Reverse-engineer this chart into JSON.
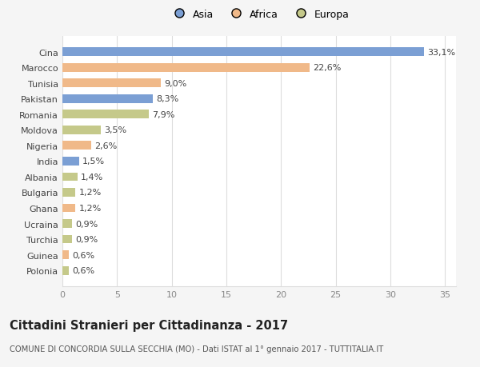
{
  "categories": [
    "Cina",
    "Marocco",
    "Tunisia",
    "Pakistan",
    "Romania",
    "Moldova",
    "Nigeria",
    "India",
    "Albania",
    "Bulgaria",
    "Ghana",
    "Ucraina",
    "Turchia",
    "Guinea",
    "Polonia"
  ],
  "values": [
    33.1,
    22.6,
    9.0,
    8.3,
    7.9,
    3.5,
    2.6,
    1.5,
    1.4,
    1.2,
    1.2,
    0.9,
    0.9,
    0.6,
    0.6
  ],
  "labels": [
    "33,1%",
    "22,6%",
    "9,0%",
    "8,3%",
    "7,9%",
    "3,5%",
    "2,6%",
    "1,5%",
    "1,4%",
    "1,2%",
    "1,2%",
    "0,9%",
    "0,9%",
    "0,6%",
    "0,6%"
  ],
  "colors": [
    "#7b9fd4",
    "#f0b989",
    "#f0b989",
    "#7b9fd4",
    "#c5c98a",
    "#c5c98a",
    "#f0b989",
    "#7b9fd4",
    "#c5c98a",
    "#c5c98a",
    "#f0b989",
    "#c5c98a",
    "#c5c98a",
    "#f0b989",
    "#c5c98a"
  ],
  "legend_labels": [
    "Asia",
    "Africa",
    "Europa"
  ],
  "legend_colors": [
    "#7b9fd4",
    "#f0b989",
    "#c5c98a"
  ],
  "title": "Cittadini Stranieri per Cittadinanza - 2017",
  "subtitle": "COMUNE DI CONCORDIA SULLA SECCHIA (MO) - Dati ISTAT al 1° gennaio 2017 - TUTTITALIA.IT",
  "xlim": [
    0,
    36
  ],
  "xticks": [
    0,
    5,
    10,
    15,
    20,
    25,
    30,
    35
  ],
  "background_color": "#f5f5f5",
  "plot_background": "#ffffff",
  "grid_color": "#dddddd",
  "bar_height": 0.55,
  "label_fontsize": 8.0,
  "tick_fontsize": 8.0,
  "title_fontsize": 10.5,
  "subtitle_fontsize": 7.2
}
